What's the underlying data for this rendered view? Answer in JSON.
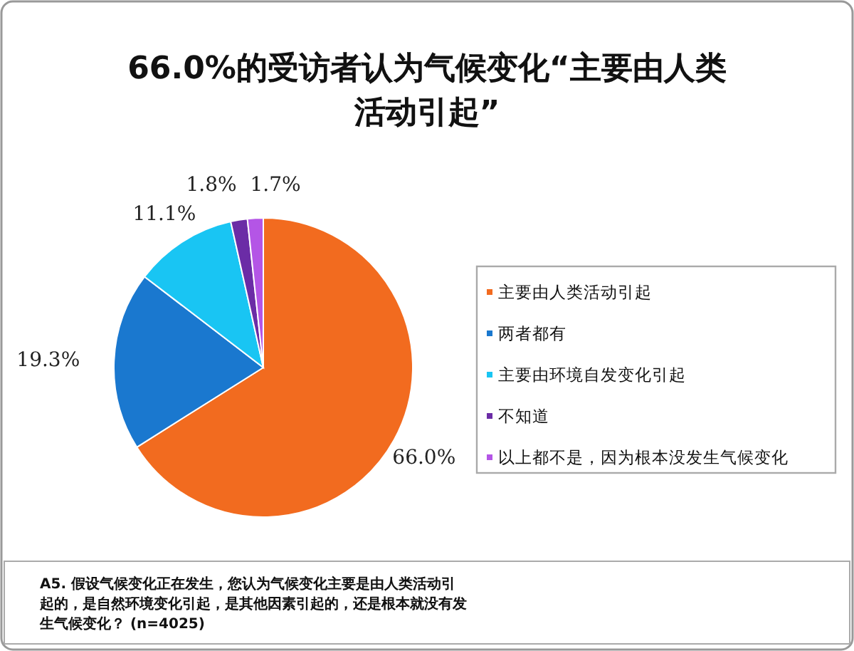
{
  "chart_data": {
    "type": "pie",
    "title": "66.0%的受访者认为气候变化“主要由人类活动引起”",
    "categories": [
      "主要由人类活动引起",
      "两者都有",
      "主要由环境自发变化引起",
      "不知道",
      "以上都不是，因为根本没发生气候变化"
    ],
    "values": [
      66.0,
      19.3,
      11.1,
      1.8,
      1.7
    ],
    "value_labels": [
      "66.0%",
      "19.3%",
      "11.1%",
      "1.8%",
      "1.7%"
    ],
    "colors": [
      "#f26b1f",
      "#1a78cf",
      "#19c5f3",
      "#6b2ca6",
      "#b455e6"
    ],
    "legend": "right",
    "annotations": [
      "A5. 假设气候变化正在发生，您认为气候变化主要是由人类活动引起的，是自然环境变化引起，是其他因素引起的，还是根本就没有发生气候变化？ (n=4025)"
    ]
  }
}
